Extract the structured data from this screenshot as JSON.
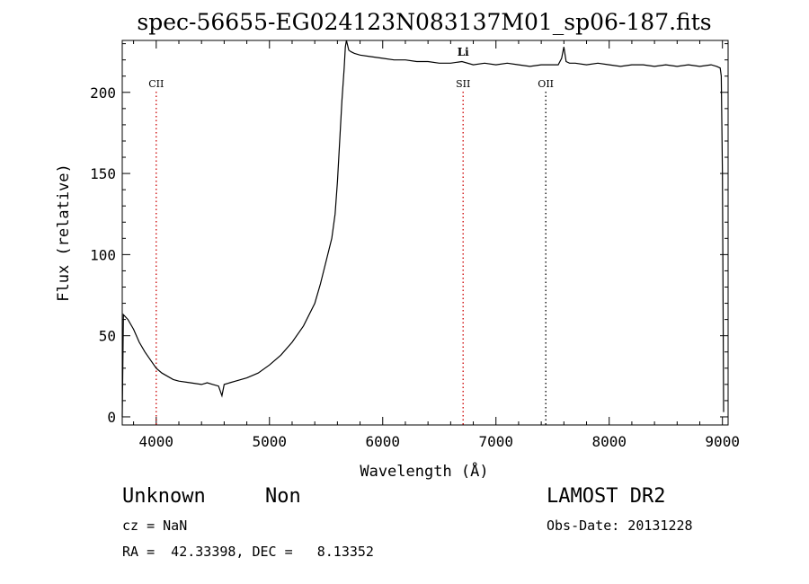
{
  "chart_data": {
    "type": "line",
    "title": "spec-56655-EG024123N083137M01_sp06-187.fits",
    "xlabel": "Wavelength (Å)",
    "ylabel": "Flux (relative)",
    "xlim": [
      3700,
      9050
    ],
    "ylim": [
      -5,
      232
    ],
    "xticks": [
      4000,
      5000,
      6000,
      7000,
      8000,
      9000
    ],
    "yticks": [
      0,
      50,
      100,
      150,
      200
    ],
    "grid": false,
    "series": [
      {
        "color": "#000000",
        "x": [
          3700,
          3710,
          3750,
          3800,
          3850,
          3900,
          3950,
          4000,
          4050,
          4100,
          4150,
          4200,
          4300,
          4400,
          4450,
          4500,
          4550,
          4580,
          4600,
          4650,
          4700,
          4800,
          4900,
          5000,
          5100,
          5200,
          5300,
          5400,
          5450,
          5500,
          5550,
          5580,
          5600,
          5620,
          5640,
          5660,
          5670,
          5680,
          5690,
          5700,
          5720,
          5750,
          5800,
          5900,
          6000,
          6100,
          6200,
          6300,
          6400,
          6500,
          6600,
          6700,
          6800,
          6900,
          7000,
          7100,
          7200,
          7300,
          7400,
          7500,
          7550,
          7580,
          7600,
          7620,
          7650,
          7700,
          7800,
          7900,
          8000,
          8100,
          8200,
          8300,
          8400,
          8500,
          8600,
          8700,
          8800,
          8900,
          8950,
          8980,
          8990,
          9000,
          9010
        ],
        "y": [
          0,
          63,
          60,
          54,
          46,
          40,
          35,
          30,
          27,
          25,
          23,
          22,
          21,
          20,
          21,
          20,
          19,
          13,
          20,
          21,
          22,
          24,
          27,
          32,
          38,
          46,
          56,
          70,
          82,
          96,
          110,
          125,
          145,
          170,
          195,
          215,
          228,
          232,
          229,
          226,
          225,
          224,
          223,
          222,
          221,
          220,
          220,
          219,
          219,
          218,
          218,
          219,
          217,
          218,
          217,
          218,
          217,
          216,
          217,
          217,
          217,
          221,
          228,
          219,
          218,
          218,
          217,
          218,
          217,
          216,
          217,
          217,
          216,
          217,
          216,
          217,
          216,
          217,
          216,
          215,
          210,
          150,
          3
        ]
      }
    ],
    "lines": [
      {
        "label": "CII",
        "x": 4000,
        "color": "#cc0000"
      },
      {
        "label": "SII",
        "x": 6710,
        "color": "#cc0000"
      },
      {
        "label": "OII",
        "x": 7440,
        "color": "#000000"
      }
    ],
    "annotations": [
      {
        "text": "Li",
        "x": 6710
      }
    ]
  },
  "info": {
    "class": "Unknown",
    "subclass": "Non",
    "survey": "LAMOST DR2",
    "cz": "cz = NaN",
    "obs_date": "Obs-Date: 20131228",
    "coords": "RA =  42.33398, DEC =   8.13352"
  }
}
